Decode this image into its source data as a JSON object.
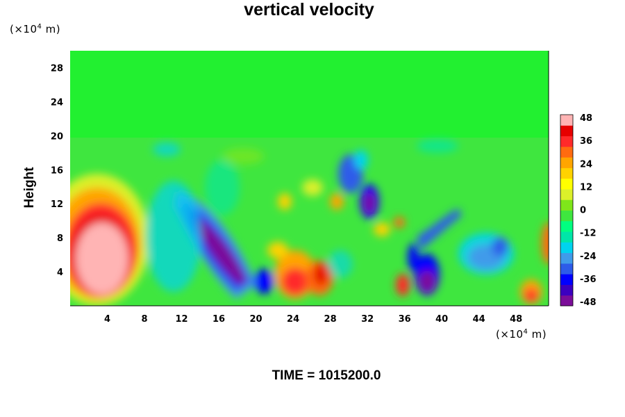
{
  "chart_data": {
    "type": "heatmap",
    "title": "vertical velocity",
    "ylabel": "Height",
    "xlabel": "",
    "x_unit": "(×10⁴ m)",
    "y_unit": "(×10⁴ m)",
    "footer": "TIME = 1015200.0",
    "xlim": [
      0,
      51.5
    ],
    "ylim": [
      0,
      30
    ],
    "x_ticks": [
      4,
      8,
      12,
      16,
      20,
      24,
      28,
      32,
      36,
      40,
      44,
      48
    ],
    "y_ticks": [
      4,
      8,
      12,
      16,
      20,
      24,
      28
    ],
    "colorbar": {
      "min": -48,
      "max": 48,
      "ticks": [
        48,
        36,
        24,
        12,
        0,
        -12,
        -24,
        -36,
        -48
      ],
      "colors": [
        "#7b0d99",
        "#3c00c0",
        "#0000ff",
        "#2d5be9",
        "#3f9bea",
        "#00d3ef",
        "#00e6a8",
        "#00ff80",
        "#3fe63f",
        "#7fe61a",
        "#dcf02a",
        "#ffff00",
        "#ffd200",
        "#ffa500",
        "#ff6b10",
        "#ff2a2a",
        "#e60000",
        "#ffb4b4"
      ]
    },
    "features": [
      {
        "x": 5.5,
        "y": 6.2,
        "value": 48
      },
      {
        "x": 16.5,
        "y": 7.0,
        "value": -48
      },
      {
        "x": 38.2,
        "y": 2.5,
        "value": -40
      },
      {
        "x": 32.1,
        "y": 12.3,
        "value": -40
      },
      {
        "x": 30.5,
        "y": 15.5,
        "value": -30
      },
      {
        "x": 25.0,
        "y": 3.5,
        "value": 36
      },
      {
        "x": 35.5,
        "y": 2.0,
        "value": 40
      },
      {
        "x": 44.5,
        "y": 5.8,
        "value": -24
      },
      {
        "x": 49.5,
        "y": 1.5,
        "value": 36
      },
      {
        "x": 21.5,
        "y": 3.0,
        "value": -30
      }
    ]
  }
}
